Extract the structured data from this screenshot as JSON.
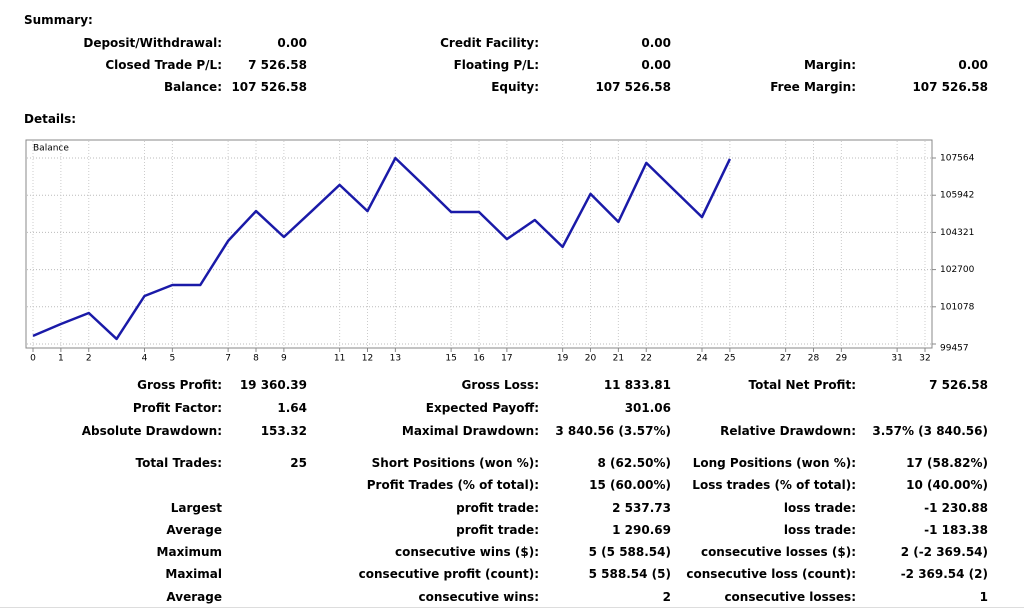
{
  "summary": {
    "title": "Summary:",
    "rows": [
      [
        {
          "label": "Deposit/Withdrawal:",
          "value": "0.00"
        },
        {
          "label": "Credit Facility:",
          "value": "0.00"
        },
        null
      ],
      [
        {
          "label": "Closed Trade P/L:",
          "value": "7 526.58"
        },
        {
          "label": "Floating P/L:",
          "value": "0.00"
        },
        {
          "label": "Margin:",
          "value": "0.00"
        }
      ],
      [
        {
          "label": "Balance:",
          "value": "107 526.58"
        },
        {
          "label": "Equity:",
          "value": "107 526.58"
        },
        {
          "label": "Free Margin:",
          "value": "107 526.58"
        }
      ]
    ]
  },
  "details": {
    "title": "Details:",
    "chart_data": {
      "type": "line",
      "x": [
        0,
        1,
        2,
        3,
        4,
        5,
        6,
        7,
        8,
        9,
        10,
        11,
        12,
        13,
        14,
        15,
        16,
        17,
        18,
        19,
        20,
        21,
        22,
        23,
        24,
        25
      ],
      "series": [
        {
          "name": "Balance",
          "color": "#1a1aa8",
          "values": [
            99810,
            100330,
            100810,
            99680,
            101550,
            102030,
            102030,
            103950,
            105250,
            104120,
            105250,
            106390,
            105250,
            107560,
            106390,
            105210,
            105210,
            104030,
            104860,
            103690,
            106000,
            104780,
            107350,
            106170,
            104990,
            107526.58
          ]
        }
      ],
      "xlim": [
        0,
        32
      ],
      "xticks": [
        0,
        1,
        2,
        4,
        5,
        7,
        8,
        9,
        11,
        12,
        13,
        15,
        16,
        17,
        19,
        20,
        21,
        22,
        24,
        25,
        27,
        28,
        29,
        31,
        32
      ],
      "ylim": [
        99326,
        108349
      ],
      "yticks": [
        99457,
        101078,
        102700,
        104321,
        105942,
        107564
      ],
      "grid": true
    },
    "rows": [
      [
        {
          "label": "Gross Profit:",
          "value": "19 360.39"
        },
        {
          "label": "Gross Loss:",
          "value": "11 833.81"
        },
        {
          "label": "Total Net Profit:",
          "value": "7 526.58"
        }
      ],
      [
        {
          "label": "Profit Factor:",
          "value": "1.64"
        },
        {
          "label": "Expected Payoff:",
          "value": "301.06"
        },
        null
      ],
      [
        {
          "label": "Absolute Drawdown:",
          "value": "153.32"
        },
        {
          "label": "Maximal Drawdown:",
          "value": "3 840.56 (3.57%)"
        },
        {
          "label": "Relative Drawdown:",
          "value": "3.57% (3 840.56)"
        }
      ],
      [
        {
          "label": "Total Trades:",
          "value": "25"
        },
        {
          "label": "Short Positions (won %):",
          "value": "8 (62.50%)"
        },
        {
          "label": "Long Positions (won %):",
          "value": "17 (58.82%)"
        }
      ],
      [
        null,
        {
          "label": "Profit Trades (% of total):",
          "value": "15 (60.00%)"
        },
        {
          "label": "Loss trades (% of total):",
          "value": "10 (40.00%)"
        }
      ],
      [
        {
          "label": "Largest"
        },
        {
          "label": "profit trade:",
          "value": "2 537.73"
        },
        {
          "label": "loss trade:",
          "value": "-1 230.88"
        }
      ],
      [
        {
          "label": "Average"
        },
        {
          "label": "profit trade:",
          "value": "1 290.69"
        },
        {
          "label": "loss trade:",
          "value": "-1 183.38"
        }
      ],
      [
        {
          "label": "Maximum"
        },
        {
          "label": "consecutive wins ($):",
          "value": "5 (5 588.54)"
        },
        {
          "label": "consecutive losses ($):",
          "value": "2 (-2 369.54)"
        }
      ],
      [
        {
          "label": "Maximal"
        },
        {
          "label": "consecutive profit (count):",
          "value": "5 588.54 (5)"
        },
        {
          "label": "consecutive loss (count):",
          "value": "-2 369.54 (2)"
        }
      ],
      [
        {
          "label": "Average"
        },
        {
          "label": "consecutive wins:",
          "value": "2"
        },
        {
          "label": "consecutive losses:",
          "value": "1"
        }
      ]
    ]
  }
}
